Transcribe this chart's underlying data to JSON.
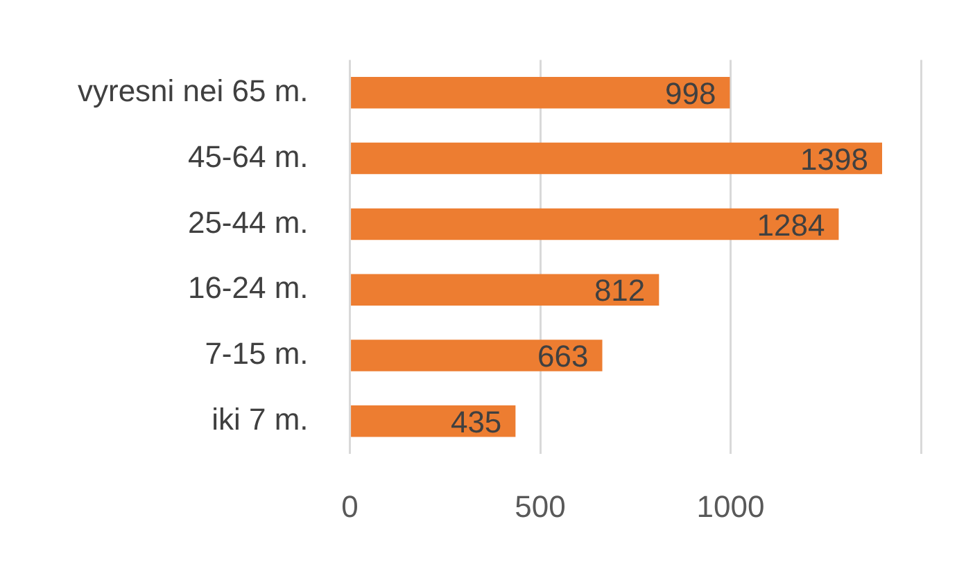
{
  "chart_data": {
    "type": "bar",
    "orientation": "horizontal",
    "categories": [
      "vyresni nei 65 m.",
      "45-64 m.",
      "25-44 m.",
      "16-24 m.",
      "7-15 m.",
      "iki 7 m."
    ],
    "values": [
      998,
      1398,
      1284,
      812,
      663,
      435
    ],
    "color": "#ed7d31",
    "xlim": [
      0,
      1500
    ],
    "xticks": [
      0,
      500,
      1000,
      {
        "value": 1500,
        "label": null
      }
    ],
    "grid": "x",
    "data_labels": true,
    "legend": false
  }
}
